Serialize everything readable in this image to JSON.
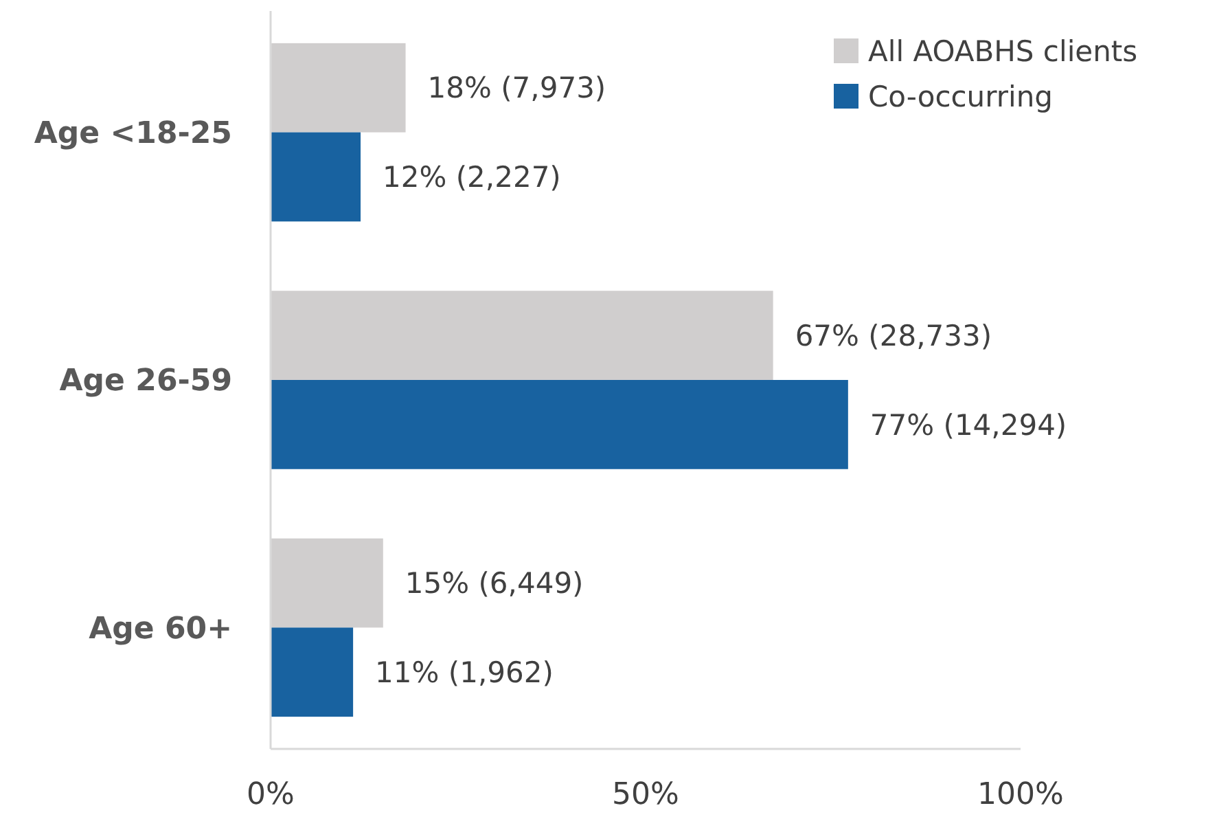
{
  "chart_data": {
    "type": "bar",
    "orientation": "horizontal",
    "categories": [
      "Age <18-25",
      "Age 26-59",
      "Age 60+"
    ],
    "series": [
      {
        "name": "All AOABHS clients",
        "color": "#d0cece",
        "values": [
          18,
          67,
          15
        ],
        "value_labels": [
          "18% (7,973)",
          "67% (28,733)",
          "15% (6,449)"
        ]
      },
      {
        "name": "Co-occurring",
        "color": "#1862a0",
        "values": [
          12,
          77,
          11
        ],
        "value_labels": [
          "12% (2,227)",
          "77% (14,294)",
          "11% (1,962)"
        ]
      }
    ],
    "xlim": [
      0,
      100
    ],
    "xticks": [
      {
        "value": 0,
        "label": "0%"
      },
      {
        "value": 50,
        "label": "50%"
      },
      {
        "value": 100,
        "label": "100%"
      }
    ],
    "legend": "top right",
    "grid": false
  }
}
